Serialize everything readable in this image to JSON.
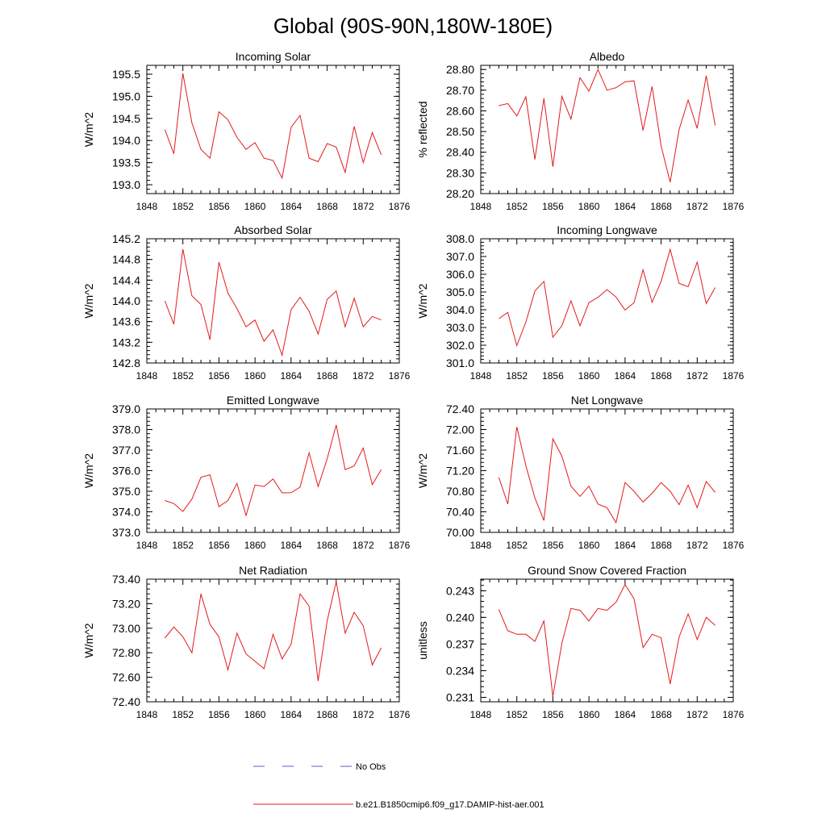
{
  "title": "Global (90S-90N,180W-180E)",
  "legend": {
    "items": [
      {
        "label": "No Obs",
        "color": "#5a5acd",
        "style": "dashed"
      },
      {
        "label": "b.e21.B1850cmip6.f09_g17.DAMIP-hist-aer.001",
        "color": "#e31a1c",
        "style": "solid"
      }
    ]
  },
  "chart_data": [
    {
      "type": "line",
      "title": "Incoming Solar",
      "ylabel": "W/m^2",
      "xlim": [
        1848,
        1876
      ],
      "ylim": [
        192.8,
        195.7
      ],
      "xticks": [
        "1848",
        "1852",
        "1856",
        "1860",
        "1864",
        "1868",
        "1872",
        "1876"
      ],
      "yticks": [
        "193.0",
        "193.5",
        "194.0",
        "194.5",
        "195.0",
        "195.5"
      ],
      "color": "#e31a1c",
      "x": [
        1850,
        1851,
        1852,
        1853,
        1854,
        1855,
        1856,
        1857,
        1858,
        1859,
        1860,
        1861,
        1862,
        1863,
        1864,
        1865,
        1866,
        1867,
        1868,
        1869,
        1870,
        1871,
        1872,
        1873,
        1874
      ],
      "values": [
        194.25,
        193.7,
        195.52,
        194.4,
        193.8,
        193.6,
        194.65,
        194.47,
        194.07,
        193.8,
        193.95,
        193.6,
        193.55,
        193.15,
        194.3,
        194.57,
        193.6,
        193.52,
        193.93,
        193.85,
        193.28,
        194.32,
        193.5,
        194.18,
        193.68
      ]
    },
    {
      "type": "line",
      "title": "Albedo",
      "ylabel": "% reflected",
      "xlim": [
        1848,
        1876
      ],
      "ylim": [
        28.2,
        28.82
      ],
      "xticks": [
        "1848",
        "1852",
        "1856",
        "1860",
        "1864",
        "1868",
        "1872",
        "1876"
      ],
      "yticks": [
        "28.20",
        "28.30",
        "28.40",
        "28.50",
        "28.60",
        "28.70",
        "28.80"
      ],
      "color": "#e31a1c",
      "x": [
        1850,
        1851,
        1852,
        1853,
        1854,
        1855,
        1856,
        1857,
        1858,
        1859,
        1860,
        1861,
        1862,
        1863,
        1864,
        1865,
        1866,
        1867,
        1868,
        1869,
        1870,
        1871,
        1872,
        1873,
        1874
      ],
      "values": [
        28.625,
        28.635,
        28.575,
        28.668,
        28.365,
        28.66,
        28.33,
        28.67,
        28.56,
        28.76,
        28.695,
        28.8,
        28.7,
        28.712,
        28.74,
        28.745,
        28.505,
        28.718,
        28.43,
        28.255,
        28.51,
        28.652,
        28.515,
        28.77,
        28.53
      ]
    },
    {
      "type": "line",
      "title": "Absorbed Solar",
      "ylabel": "W/m^2",
      "xlim": [
        1848,
        1876
      ],
      "ylim": [
        142.8,
        145.2
      ],
      "xticks": [
        "1848",
        "1852",
        "1856",
        "1860",
        "1864",
        "1868",
        "1872",
        "1876"
      ],
      "yticks": [
        "142.8",
        "143.2",
        "143.6",
        "144.0",
        "144.4",
        "144.8",
        "145.2"
      ],
      "color": "#e31a1c",
      "x": [
        1850,
        1851,
        1852,
        1853,
        1854,
        1855,
        1856,
        1857,
        1858,
        1859,
        1860,
        1861,
        1862,
        1863,
        1864,
        1865,
        1866,
        1867,
        1868,
        1869,
        1870,
        1871,
        1872,
        1873,
        1874
      ],
      "values": [
        144.0,
        143.55,
        145.0,
        144.1,
        143.93,
        143.25,
        144.75,
        144.15,
        143.85,
        143.5,
        143.63,
        143.22,
        143.44,
        142.95,
        143.83,
        144.07,
        143.8,
        143.36,
        144.03,
        144.19,
        143.5,
        144.05,
        143.5,
        143.7,
        143.63
      ]
    },
    {
      "type": "line",
      "title": "Incoming Longwave",
      "ylabel": "W/m^2",
      "xlim": [
        1848,
        1876
      ],
      "ylim": [
        301.0,
        308.0
      ],
      "xticks": [
        "1848",
        "1852",
        "1856",
        "1860",
        "1864",
        "1868",
        "1872",
        "1876"
      ],
      "yticks": [
        "301.0",
        "302.0",
        "303.0",
        "304.0",
        "305.0",
        "306.0",
        "307.0",
        "308.0"
      ],
      "color": "#e31a1c",
      "x": [
        1850,
        1851,
        1852,
        1853,
        1854,
        1855,
        1856,
        1857,
        1858,
        1859,
        1860,
        1861,
        1862,
        1863,
        1864,
        1865,
        1866,
        1867,
        1868,
        1869,
        1870,
        1871,
        1872,
        1873,
        1874
      ],
      "values": [
        303.5,
        303.85,
        301.98,
        303.3,
        305.05,
        305.6,
        302.45,
        303.1,
        304.5,
        303.1,
        304.4,
        304.7,
        305.13,
        304.72,
        303.98,
        304.4,
        306.25,
        304.42,
        305.6,
        307.4,
        305.48,
        305.3,
        306.68,
        304.35,
        305.25
      ]
    },
    {
      "type": "line",
      "title": "Emitted Longwave",
      "ylabel": "W/m^2",
      "xlim": [
        1848,
        1876
      ],
      "ylim": [
        373.0,
        379.0
      ],
      "xticks": [
        "1848",
        "1852",
        "1856",
        "1860",
        "1864",
        "1868",
        "1872",
        "1876"
      ],
      "yticks": [
        "373.0",
        "374.0",
        "375.0",
        "376.0",
        "377.0",
        "378.0",
        "379.0"
      ],
      "color": "#e31a1c",
      "x": [
        1850,
        1851,
        1852,
        1853,
        1854,
        1855,
        1856,
        1857,
        1858,
        1859,
        1860,
        1861,
        1862,
        1863,
        1864,
        1865,
        1866,
        1867,
        1868,
        1869,
        1870,
        1871,
        1872,
        1873,
        1874
      ],
      "values": [
        374.55,
        374.4,
        374.02,
        374.62,
        375.68,
        375.8,
        374.25,
        374.55,
        375.38,
        373.82,
        375.3,
        375.23,
        375.6,
        374.92,
        374.93,
        375.2,
        376.87,
        375.23,
        376.58,
        378.22,
        376.05,
        376.23,
        377.1,
        375.32,
        376.05
      ]
    },
    {
      "type": "line",
      "title": "Net Longwave",
      "ylabel": "W/m^2",
      "xlim": [
        1848,
        1876
      ],
      "ylim": [
        70.0,
        72.4
      ],
      "xticks": [
        "1848",
        "1852",
        "1856",
        "1860",
        "1864",
        "1868",
        "1872",
        "1876"
      ],
      "yticks": [
        "70.00",
        "70.40",
        "70.80",
        "71.20",
        "71.60",
        "72.00",
        "72.40"
      ],
      "color": "#e31a1c",
      "x": [
        1850,
        1851,
        1852,
        1853,
        1854,
        1855,
        1856,
        1857,
        1858,
        1859,
        1860,
        1861,
        1862,
        1863,
        1864,
        1865,
        1866,
        1867,
        1868,
        1869,
        1870,
        1871,
        1872,
        1873,
        1874
      ],
      "values": [
        71.07,
        70.55,
        72.05,
        71.3,
        70.67,
        70.23,
        71.82,
        71.48,
        70.9,
        70.7,
        70.9,
        70.55,
        70.48,
        70.19,
        70.97,
        70.8,
        70.59,
        70.76,
        70.97,
        70.8,
        70.54,
        70.92,
        70.48,
        70.99,
        70.78
      ]
    },
    {
      "type": "line",
      "title": "Net Radiation",
      "ylabel": "W/m^2",
      "xlim": [
        1848,
        1876
      ],
      "ylim": [
        72.4,
        73.4
      ],
      "xticks": [
        "1848",
        "1852",
        "1856",
        "1860",
        "1864",
        "1868",
        "1872",
        "1876"
      ],
      "yticks": [
        "72.40",
        "72.60",
        "72.80",
        "73.00",
        "73.20",
        "73.40"
      ],
      "color": "#e31a1c",
      "x": [
        1850,
        1851,
        1852,
        1853,
        1854,
        1855,
        1856,
        1857,
        1858,
        1859,
        1860,
        1861,
        1862,
        1863,
        1864,
        1865,
        1866,
        1867,
        1868,
        1869,
        1870,
        1871,
        1872,
        1873,
        1874
      ],
      "values": [
        72.92,
        73.01,
        72.93,
        72.8,
        73.28,
        73.03,
        72.93,
        72.66,
        72.96,
        72.79,
        72.73,
        72.67,
        72.95,
        72.75,
        72.87,
        73.28,
        73.18,
        72.57,
        73.06,
        73.38,
        72.96,
        73.13,
        73.02,
        72.7,
        72.84
      ]
    },
    {
      "type": "line",
      "title": "Ground Snow Covered Fraction",
      "ylabel": "unitless",
      "xlim": [
        1848,
        1876
      ],
      "ylim": [
        0.2305,
        0.2443
      ],
      "xticks": [
        "1848",
        "1852",
        "1856",
        "1860",
        "1864",
        "1868",
        "1872",
        "1876"
      ],
      "yticks": [
        "0.231",
        "0.234",
        "0.237",
        "0.240",
        "0.243"
      ],
      "ytick_values": [
        0.231,
        0.234,
        0.237,
        0.24,
        0.243
      ],
      "color": "#e31a1c",
      "x": [
        1850,
        1851,
        1852,
        1853,
        1854,
        1855,
        1856,
        1857,
        1858,
        1859,
        1860,
        1861,
        1862,
        1863,
        1864,
        1865,
        1866,
        1867,
        1868,
        1869,
        1870,
        1871,
        1872,
        1873,
        1874
      ],
      "values": [
        0.2409,
        0.2385,
        0.2381,
        0.2381,
        0.2373,
        0.2396,
        0.2311,
        0.2371,
        0.241,
        0.2408,
        0.2396,
        0.241,
        0.2408,
        0.2417,
        0.2437,
        0.2421,
        0.2366,
        0.2381,
        0.2377,
        0.2325,
        0.2378,
        0.2404,
        0.2375,
        0.24,
        0.2391
      ]
    }
  ]
}
